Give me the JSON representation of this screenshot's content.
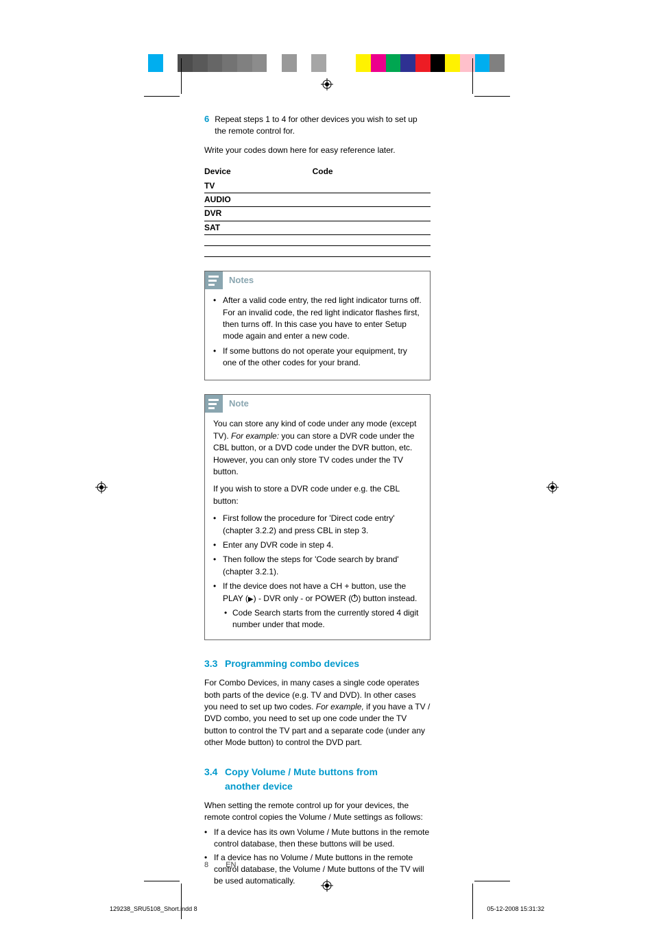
{
  "colorbar": [
    "#00aeef",
    "#ffffff",
    "#4d4d4d",
    "#595959",
    "#666666",
    "#737373",
    "#808080",
    "#8c8c8c",
    "#ffffff",
    "#999999",
    "#ffffff",
    "#a6a6a6",
    "#ffffff",
    "#ffffff",
    "#fff200",
    "#ec008c",
    "#00a651",
    "#2e3192",
    "#ed1c24",
    "#000000",
    "#fff200",
    "#ffc0cb",
    "#00aeef",
    "#808080"
  ],
  "step6": {
    "num": "6",
    "text": "Repeat steps 1 to 4 for other devices you wish to set up the remote control for."
  },
  "writecodes": "Write your codes down here for easy reference later.",
  "codetable": {
    "headers": {
      "device": "Device",
      "code": "Code"
    },
    "rows": [
      "TV",
      "AUDIO",
      "DVR",
      "SAT"
    ]
  },
  "notes1": {
    "title": "Notes",
    "items": [
      "After a valid code entry, the red light indicator turns off. For an invalid code, the red light indicator flashes first, then turns off. In this case you have to enter Setup mode again and enter a new code.",
      "If some buttons do not operate your equipment, try one of the other codes for your brand."
    ]
  },
  "notes2": {
    "title": "Note",
    "intro_a": "You can store any kind of code under any mode (except TV). ",
    "intro_i": "For example:",
    "intro_b": " you can store a DVR code under the CBL button, or a DVD code under the DVR button, etc. However, you can only store TV codes under the TV button.",
    "lead": "If you wish to store a DVR code under e.g. the CBL button:",
    "items": [
      "First follow the procedure for 'Direct code entry' (chapter 3.2.2) and press CBL in step 3.",
      "Enter any DVR code in step 4.",
      "Then follow the steps for 'Code search by brand' (chapter 3.2.1).",
      "If the device does not have a CH + button, use the PLAY (▶) - DVR only - or POWER (⏻) button instead."
    ],
    "sub": "Code Search starts from the currently stored 4 digit number under that mode."
  },
  "sec33": {
    "num": "3.3",
    "title": "Programming combo devices",
    "body_a": "For Combo Devices, in many cases a single code operates both parts of the device (e.g. TV and DVD). In other cases you need to set up two codes. ",
    "body_i": "For example,",
    "body_b": "  if you have a TV / DVD combo, you need to set up one code under the TV button to control the TV part and a separate code (under any other Mode button) to control the DVD part."
  },
  "sec34": {
    "num": "3.4",
    "title1": "Copy Volume / Mute buttons from",
    "title2": "another device",
    "body": "When setting the remote control up for your devices, the remote control copies the Volume / Mute settings as follows:",
    "items": [
      "If a device has its own Volume / Mute buttons in the remote control database, then these buttons will be used.",
      "If a device has no Volume / Mute buttons in the remote control database, the Volume / Mute buttons of the TV will be used automatically."
    ]
  },
  "footer": {
    "page": "8",
    "lang": "EN"
  },
  "printline": {
    "left": "129238_SRU5108_Short.indd   8",
    "right": "05-12-2008   15:31:32"
  }
}
